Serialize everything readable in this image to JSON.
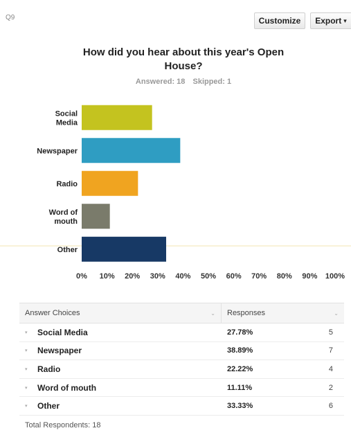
{
  "question_id": "Q9",
  "buttons": {
    "customize": "Customize",
    "export": "Export"
  },
  "title_line1": "How did you hear about this year's Open",
  "title_line2": "House?",
  "answered": "Answered: 18",
  "skipped": "Skipped: 1",
  "colors": {
    "bars": [
      "#c4c31f",
      "#2f9dc2",
      "#f0a420",
      "#7a7b6b",
      "#173965"
    ],
    "highlight_line": "#f3e6b0"
  },
  "chart_data": {
    "type": "bar",
    "orientation": "horizontal",
    "categories": [
      [
        "Social",
        "Media"
      ],
      [
        "Newspaper"
      ],
      [
        "Radio"
      ],
      [
        "Word of",
        "mouth"
      ],
      [
        "Other"
      ]
    ],
    "values": [
      27.78,
      38.89,
      22.22,
      11.11,
      33.33
    ],
    "xlim": [
      0,
      100
    ],
    "x_ticks": [
      "0%",
      "10%",
      "20%",
      "30%",
      "40%",
      "50%",
      "60%",
      "70%",
      "80%",
      "90%",
      "100%"
    ],
    "grid": false,
    "title": "How did you hear about this year's Open House?"
  },
  "table": {
    "headers": {
      "choice": "Answer Choices",
      "responses": "Responses"
    },
    "rows": [
      {
        "choice": "Social Media",
        "percent": "27.78%",
        "count": "5"
      },
      {
        "choice": "Newspaper",
        "percent": "38.89%",
        "count": "7"
      },
      {
        "choice": "Radio",
        "percent": "22.22%",
        "count": "4"
      },
      {
        "choice": "Word of mouth",
        "percent": "11.11%",
        "count": "2"
      },
      {
        "choice": "Other",
        "percent": "33.33%",
        "count": "6"
      }
    ],
    "total": "Total Respondents: 18"
  }
}
